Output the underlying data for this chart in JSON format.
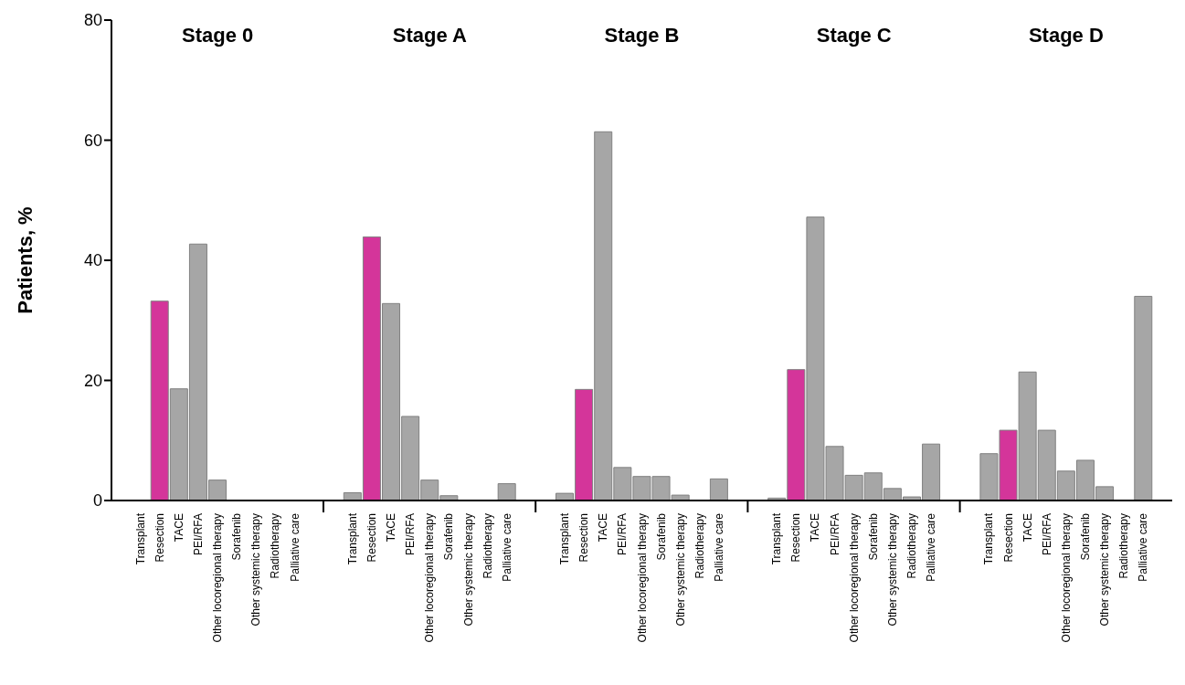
{
  "chart_data": {
    "type": "bar",
    "ylabel": "Patients, %",
    "ylim": [
      0,
      80
    ],
    "yticks": [
      0,
      20,
      40,
      60,
      80
    ],
    "grid": false,
    "legend": false,
    "annotations": [
      "Stage 0",
      "Stage A",
      "Stage B",
      "Stage C",
      "Stage D"
    ],
    "categories": [
      "Transplant",
      "Resection",
      "TACE",
      "PEI/RFA",
      "Other locoregional therapy",
      "Sorafenib",
      "Other systemic therapy",
      "Radiotherapy",
      "Palliative care",
      "Transplant",
      "Resection",
      "TACE",
      "PEI/RFA",
      "Other locoregional therapy",
      "Sorafenib",
      "Other systemic therapy",
      "Radiotherapy",
      "Palliative care",
      "Transplant",
      "Resection",
      "TACE",
      "PEI/RFA",
      "Other locoregional therapy",
      "Sorafenib",
      "Other systemic therapy",
      "Radiotherapy",
      "Palliative care",
      "Transplant",
      "Resection",
      "TACE",
      "PEI/RFA",
      "Other locoregional therapy",
      "Sorafenib",
      "Other systemic therapy",
      "Radiotherapy",
      "Palliative care",
      "Transplant",
      "Resection",
      "TACE",
      "PEI/RFA",
      "Other locoregional therapy",
      "Sorafenib",
      "Other systemic therapy",
      "Radiotherapy",
      "Palliative care"
    ],
    "values": [
      0,
      33.2,
      18.6,
      42.7,
      3.4,
      0,
      0,
      0,
      0,
      1.3,
      43.9,
      32.8,
      14.0,
      3.4,
      0.8,
      0,
      0,
      2.8,
      1.2,
      18.5,
      61.4,
      5.5,
      4.0,
      4.0,
      0.9,
      0,
      3.6,
      0.4,
      21.8,
      47.2,
      9.0,
      4.2,
      4.6,
      2.0,
      0.6,
      9.4,
      7.8,
      11.7,
      21.4,
      11.7,
      4.9,
      6.7,
      2.3,
      0,
      34.0
    ],
    "colors": [
      "#a6a6a6",
      "#d4359a",
      "#a6a6a6",
      "#a6a6a6",
      "#a6a6a6",
      "#a6a6a6",
      "#a6a6a6",
      "#a6a6a6",
      "#a6a6a6",
      "#a6a6a6",
      "#d4359a",
      "#a6a6a6",
      "#a6a6a6",
      "#a6a6a6",
      "#a6a6a6",
      "#a6a6a6",
      "#a6a6a6",
      "#a6a6a6",
      "#a6a6a6",
      "#d4359a",
      "#a6a6a6",
      "#a6a6a6",
      "#a6a6a6",
      "#a6a6a6",
      "#a6a6a6",
      "#a6a6a6",
      "#a6a6a6",
      "#a6a6a6",
      "#d4359a",
      "#a6a6a6",
      "#a6a6a6",
      "#a6a6a6",
      "#a6a6a6",
      "#a6a6a6",
      "#a6a6a6",
      "#a6a6a6",
      "#a6a6a6",
      "#d4359a",
      "#a6a6a6",
      "#a6a6a6",
      "#a6a6a6",
      "#a6a6a6",
      "#a6a6a6",
      "#a6a6a6",
      "#a6a6a6"
    ]
  }
}
